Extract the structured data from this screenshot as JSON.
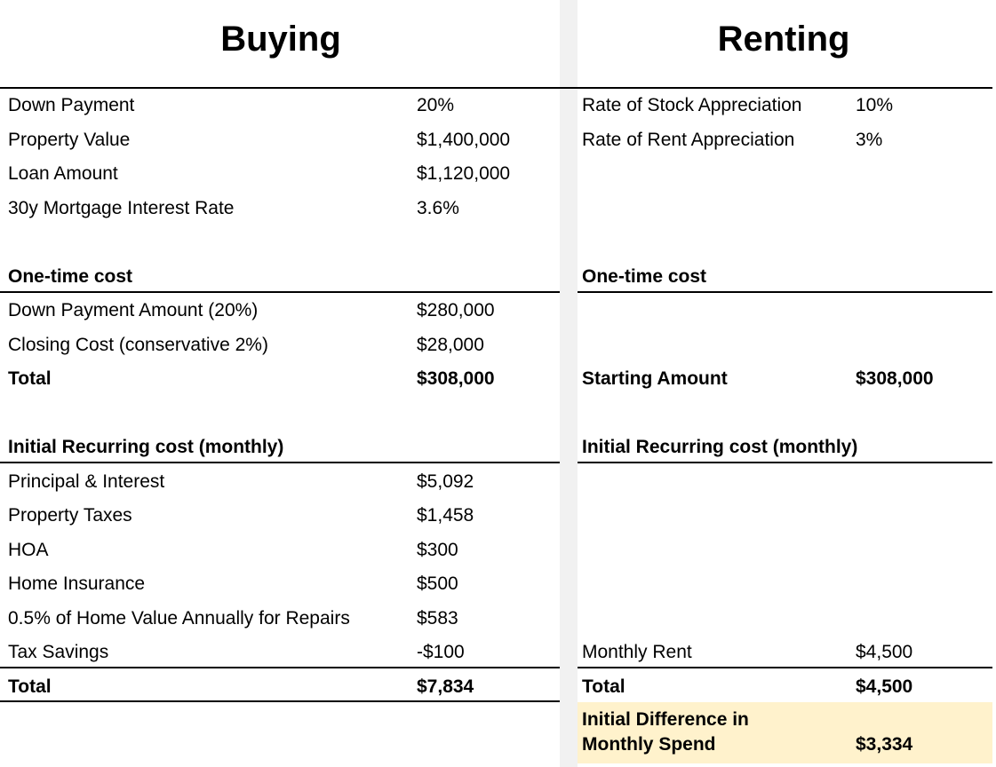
{
  "buying": {
    "title": "Buying",
    "inputs": [
      [
        "Down Payment",
        "20%"
      ],
      [
        "Property Value",
        "$1,400,000"
      ],
      [
        "Loan Amount",
        "$1,120,000"
      ],
      [
        "30y Mortgage Interest Rate",
        "3.6%"
      ]
    ],
    "one_time": {
      "heading": "One-time cost",
      "rows": [
        [
          "Down Payment Amount (20%)",
          "$280,000"
        ],
        [
          "Closing Cost (conservative 2%)",
          "$28,000"
        ]
      ],
      "total": [
        "Total",
        "$308,000"
      ]
    },
    "recurring": {
      "heading": "Initial Recurring cost (monthly)",
      "rows": [
        [
          "Principal & Interest",
          "$5,092"
        ],
        [
          "Property Taxes",
          "$1,458"
        ],
        [
          "HOA",
          "$300"
        ],
        [
          "Home Insurance",
          "$500"
        ],
        [
          "0.5% of Home Value Annually for Repairs",
          "$583"
        ],
        [
          "Tax Savings",
          "-$100"
        ]
      ],
      "total": [
        "Total",
        "$7,834"
      ]
    }
  },
  "renting": {
    "title": "Renting",
    "inputs": [
      [
        "Rate of Stock Appreciation",
        "10%"
      ],
      [
        "Rate of Rent Appreciation",
        "3%"
      ]
    ],
    "one_time": {
      "heading": "One-time cost",
      "total": [
        "Starting Amount",
        "$308,000"
      ]
    },
    "recurring": {
      "heading": "Initial Recurring cost (monthly)",
      "rows": [
        [
          "Monthly Rent",
          "$4,500"
        ]
      ],
      "total": [
        "Total",
        "$4,500"
      ]
    },
    "difference": [
      "Initial Difference in Monthly Spend",
      "$3,334"
    ]
  }
}
